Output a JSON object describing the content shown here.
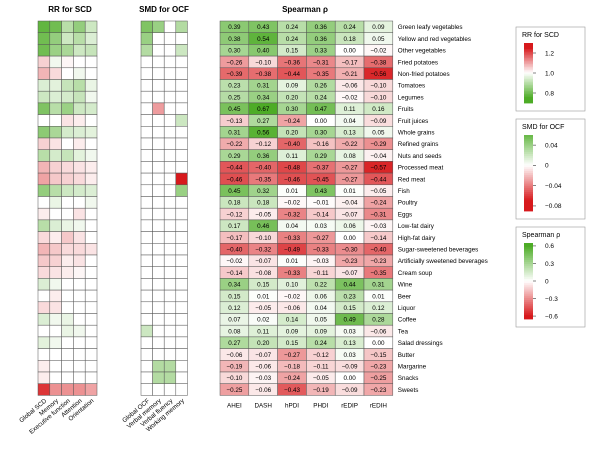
{
  "chart_data": {
    "type": "heatmap",
    "foods": [
      "Green leafy vegetables",
      "Yellow and red vegetables",
      "Other vegetables",
      "Fried potatoes",
      "Non-fried potatoes",
      "Tomatoes",
      "Legumes",
      "Fruits",
      "Fruit juices",
      "Whole grains",
      "Refined grains",
      "Nuts and seeds",
      "Processed meat",
      "Red meat",
      "Fish",
      "Poultry",
      "Eggs",
      "Low-fat dairy",
      "High-fat dairy",
      "Sugar-sweetened beverages",
      "Artificially sweetened beverages",
      "Cream soup",
      "Wine",
      "Beer",
      "Liquor",
      "Coffee",
      "Tea",
      "Salad dressings",
      "Butter",
      "Margarine",
      "Snacks",
      "Sweets"
    ],
    "panels": [
      {
        "title": "RR for SCD",
        "columns": [
          "Global SCD",
          "Memory",
          "Executive function",
          "Attention",
          "Orientation"
        ],
        "legend": {
          "title": "RR for SCD",
          "ticks": [
            "1.2",
            "1.0",
            "0.8"
          ],
          "range": [
            0.7,
            1.3
          ],
          "low_color": "#4dac26",
          "high_color": "#d7191c"
        },
        "values": [
          [
            0.78,
            0.8,
            0.9,
            0.85,
            0.93
          ],
          [
            0.8,
            0.85,
            0.93,
            0.9,
            0.95
          ],
          [
            0.8,
            0.86,
            0.88,
            0.93,
            0.92
          ],
          [
            1.05,
            0.98,
            1.01,
            1.0,
            1.0
          ],
          [
            1.08,
            1.04,
            1.0,
            0.98,
            1.0
          ],
          [
            0.95,
            0.96,
            0.92,
            0.9,
            0.97
          ],
          [
            0.93,
            0.95,
            0.94,
            0.92,
            0.98
          ],
          [
            0.82,
            0.9,
            0.86,
            0.93,
            0.94
          ],
          [
            1.0,
            1.0,
            1.03,
            1.02,
            1.0
          ],
          [
            0.84,
            0.88,
            0.94,
            0.95,
            0.96
          ],
          [
            1.05,
            1.03,
            1.0,
            1.02,
            1.0
          ],
          [
            0.9,
            0.94,
            0.92,
            0.96,
            0.98
          ],
          [
            1.08,
            1.05,
            1.04,
            1.03,
            1.02
          ],
          [
            1.1,
            1.06,
            1.05,
            1.04,
            1.02
          ],
          [
            0.85,
            0.9,
            0.93,
            0.94,
            0.95
          ],
          [
            1.0,
            0.97,
            1.0,
            1.0,
            0.98
          ],
          [
            1.02,
            1.0,
            1.0,
            1.03,
            1.0
          ],
          [
            0.9,
            0.95,
            0.97,
            0.98,
            1.0
          ],
          [
            1.04,
            1.02,
            1.06,
            1.03,
            1.0
          ],
          [
            1.08,
            1.06,
            1.04,
            1.04,
            1.03
          ],
          [
            1.06,
            1.05,
            1.02,
            1.03,
            1.0
          ],
          [
            1.04,
            1.03,
            1.02,
            1.01,
            1.0
          ],
          [
            0.95,
            0.98,
            1.0,
            1.0,
            1.0
          ],
          [
            1.0,
            1.02,
            1.0,
            1.0,
            1.0
          ],
          [
            1.04,
            1.03,
            1.0,
            1.0,
            1.0
          ],
          [
            0.95,
            0.98,
            0.97,
            1.0,
            1.0
          ],
          [
            1.0,
            1.0,
            0.97,
            0.98,
            1.0
          ],
          [
            0.96,
            0.98,
            1.0,
            1.0,
            1.0
          ],
          [
            1.0,
            1.0,
            1.0,
            1.0,
            1.0
          ],
          [
            1.02,
            1.0,
            1.0,
            1.0,
            1.0
          ],
          [
            1.02,
            1.0,
            1.0,
            1.0,
            1.0
          ],
          [
            1.22,
            1.12,
            1.12,
            1.12,
            1.1
          ]
        ]
      },
      {
        "title": "SMD for OCF",
        "columns": [
          "Global OCF",
          "Verbal memory",
          "Verbal fluency",
          "Working memory"
        ],
        "legend": {
          "title": "SMD for OCF",
          "ticks": [
            "0.04",
            "0",
            "−0.04",
            "−0.08"
          ],
          "range": [
            -0.08,
            0.06
          ],
          "low_color": "#d7191c",
          "high_color": "#4dac26"
        },
        "values": [
          [
            0.05,
            0.04,
            0.0,
            0.03
          ],
          [
            0.04,
            0.0,
            0.0,
            0.0
          ],
          [
            0.03,
            0.0,
            0.0,
            0.02
          ],
          [
            0.0,
            0.0,
            0.0,
            0.0
          ],
          [
            0.0,
            0.0,
            0.0,
            0.0
          ],
          [
            0.0,
            0.0,
            0.0,
            0.0
          ],
          [
            0.0,
            0.0,
            0.0,
            0.0
          ],
          [
            0.0,
            -0.03,
            0.0,
            0.0
          ],
          [
            0.0,
            0.0,
            0.0,
            0.02
          ],
          [
            0.0,
            0.0,
            0.0,
            0.0
          ],
          [
            0.0,
            0.0,
            0.0,
            0.0
          ],
          [
            0.0,
            0.0,
            0.0,
            0.0
          ],
          [
            0.0,
            0.0,
            0.0,
            0.0
          ],
          [
            0.0,
            0.0,
            0.0,
            -0.08
          ],
          [
            0.0,
            0.0,
            0.0,
            0.04
          ],
          [
            0.0,
            0.0,
            0.0,
            0.0
          ],
          [
            0.0,
            0.0,
            0.0,
            0.0
          ],
          [
            0.0,
            0.0,
            0.0,
            0.0
          ],
          [
            0.0,
            0.0,
            0.0,
            0.0
          ],
          [
            0.0,
            0.0,
            0.0,
            0.0
          ],
          [
            0.0,
            0.0,
            0.0,
            0.0
          ],
          [
            0.0,
            0.0,
            0.0,
            0.0
          ],
          [
            0.0,
            0.0,
            0.0,
            0.0
          ],
          [
            0.0,
            0.0,
            0.0,
            0.0
          ],
          [
            0.0,
            0.0,
            0.0,
            0.0
          ],
          [
            0.0,
            0.0,
            0.0,
            0.0
          ],
          [
            0.02,
            0.0,
            0.0,
            0.0
          ],
          [
            0.0,
            0.0,
            0.0,
            0.0
          ],
          [
            0.0,
            0.0,
            0.0,
            0.0
          ],
          [
            0.0,
            0.03,
            0.03,
            0.0
          ],
          [
            0.0,
            0.03,
            0.03,
            0.0
          ],
          [
            0.0,
            0.0,
            0.0,
            0.0
          ]
        ]
      },
      {
        "title": "Spearman ρ",
        "columns": [
          "AHEI",
          "DASH",
          "hPDI",
          "PHDI",
          "rEDIP",
          "rEDIH"
        ],
        "legend": {
          "title": "Spearman ρ",
          "ticks": [
            "0.6",
            "0.3",
            "0",
            "−0.3",
            "−0.6"
          ],
          "range": [
            -0.6,
            0.6
          ],
          "low_color": "#d7191c",
          "high_color": "#4dac26"
        },
        "values": [
          [
            0.39,
            0.43,
            0.24,
            0.36,
            0.24,
            0.09
          ],
          [
            0.38,
            0.54,
            0.24,
            0.36,
            0.18,
            0.05
          ],
          [
            0.3,
            0.4,
            0.15,
            0.33,
            0.0,
            -0.02
          ],
          [
            -0.26,
            -0.1,
            -0.36,
            -0.31,
            -0.17,
            -0.38
          ],
          [
            -0.39,
            -0.38,
            -0.44,
            -0.35,
            -0.21,
            -0.56
          ],
          [
            0.23,
            0.31,
            0.09,
            0.26,
            -0.06,
            -0.1
          ],
          [
            0.25,
            0.34,
            0.2,
            0.24,
            -0.02,
            -0.1
          ],
          [
            0.45,
            0.67,
            0.3,
            0.47,
            0.11,
            0.16
          ],
          [
            -0.13,
            0.27,
            -0.24,
            0.0,
            0.04,
            -0.09
          ],
          [
            0.31,
            0.56,
            0.2,
            0.3,
            0.13,
            0.05
          ],
          [
            -0.22,
            -0.12,
            -0.4,
            -0.16,
            -0.22,
            -0.29
          ],
          [
            0.29,
            0.36,
            0.11,
            0.29,
            0.08,
            -0.04
          ],
          [
            -0.44,
            -0.4,
            -0.48,
            -0.37,
            -0.27,
            -0.57
          ],
          [
            -0.46,
            -0.35,
            -0.46,
            -0.45,
            -0.27,
            -0.44
          ],
          [
            0.45,
            0.32,
            0.01,
            0.43,
            0.01,
            -0.05
          ],
          [
            0.18,
            0.18,
            -0.02,
            -0.01,
            -0.04,
            -0.24
          ],
          [
            -0.12,
            -0.05,
            -0.32,
            -0.14,
            -0.07,
            -0.31
          ],
          [
            0.17,
            0.46,
            0.04,
            0.03,
            0.06,
            -0.03
          ],
          [
            -0.17,
            -0.1,
            -0.33,
            -0.27,
            0.0,
            -0.14
          ],
          [
            -0.4,
            -0.32,
            -0.49,
            -0.33,
            -0.3,
            -0.4
          ],
          [
            -0.02,
            -0.07,
            0.01,
            -0.03,
            -0.23,
            -0.23
          ],
          [
            -0.14,
            -0.08,
            -0.33,
            -0.11,
            -0.07,
            -0.35
          ],
          [
            0.34,
            0.15,
            0.1,
            0.22,
            0.44,
            0.31
          ],
          [
            0.15,
            0.01,
            -0.02,
            0.06,
            0.23,
            0.01
          ],
          [
            0.12,
            -0.05,
            -0.06,
            0.04,
            0.15,
            0.12
          ],
          [
            0.07,
            0.02,
            0.14,
            0.05,
            0.49,
            0.28
          ],
          [
            0.08,
            0.11,
            0.09,
            0.09,
            0.03,
            -0.06
          ],
          [
            0.27,
            0.2,
            0.15,
            0.24,
            0.13,
            0.0
          ],
          [
            -0.06,
            -0.07,
            -0.27,
            -0.12,
            0.03,
            -0.15
          ],
          [
            -0.19,
            -0.06,
            -0.18,
            -0.11,
            -0.09,
            -0.23
          ],
          [
            -0.1,
            -0.03,
            -0.24,
            -0.05,
            0.0,
            -0.25
          ],
          [
            -0.25,
            -0.06,
            -0.43,
            -0.19,
            -0.09,
            -0.23
          ]
        ]
      }
    ]
  }
}
